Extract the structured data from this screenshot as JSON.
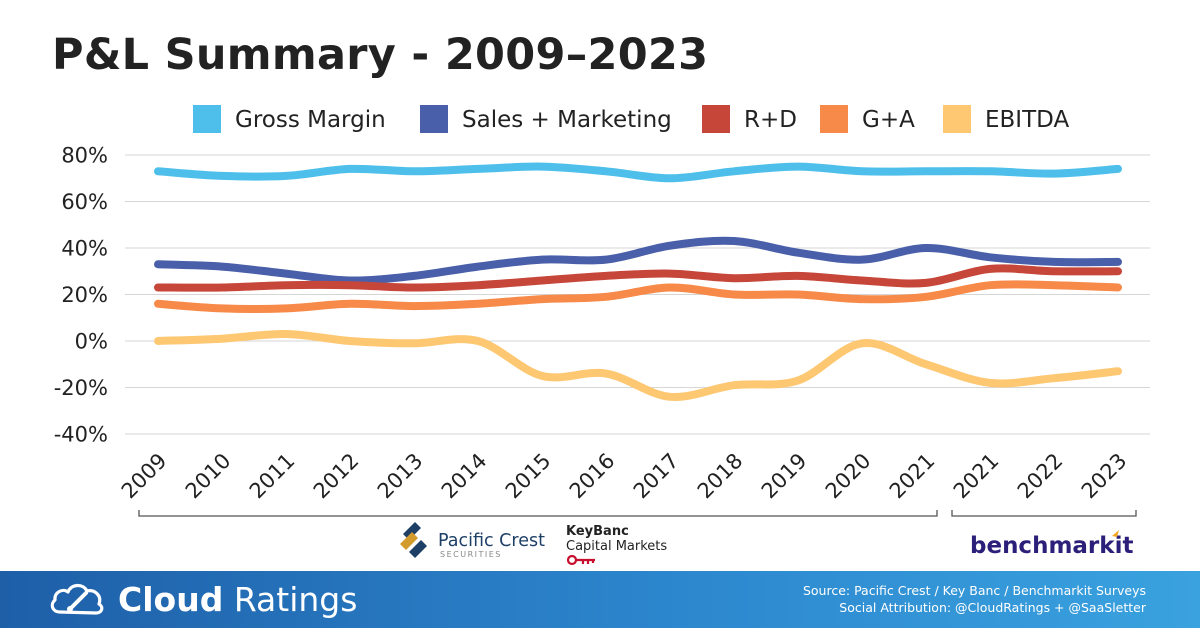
{
  "title": "P&L Summary - 2009–2023",
  "chart_data": {
    "type": "line",
    "title": "P&L Summary - 2009–2023",
    "categories": [
      "2009",
      "2010",
      "2011",
      "2012",
      "2013",
      "2014",
      "2015",
      "2016",
      "2017",
      "2018",
      "2019",
      "2020",
      "2021",
      "2021",
      "2022",
      "2023"
    ],
    "ylim": [
      -40,
      80
    ],
    "yticks": [
      80,
      60,
      40,
      20,
      0,
      -20,
      -40
    ],
    "ytick_labels": [
      "80%",
      "60%",
      "40%",
      "20%",
      "0%",
      "-20%",
      "-40%"
    ],
    "grid": true,
    "legend_position": "top",
    "series": [
      {
        "name": "Gross Margin",
        "color": "#4dbfea",
        "values": [
          73,
          71,
          71,
          74,
          73,
          74,
          75,
          73,
          70,
          73,
          75,
          73,
          73,
          73,
          72,
          74
        ]
      },
      {
        "name": "Sales + Marketing",
        "color": "#4a5fa9",
        "values": [
          33,
          32,
          29,
          26,
          28,
          32,
          35,
          35,
          41,
          43,
          38,
          35,
          40,
          36,
          34,
          34
        ]
      },
      {
        "name": "R+D",
        "color": "#c7463a",
        "values": [
          23,
          23,
          24,
          24,
          23,
          24,
          26,
          28,
          29,
          27,
          28,
          26,
          25,
          31,
          30,
          30
        ]
      },
      {
        "name": "G+A",
        "color": "#f78a48",
        "values": [
          16,
          14,
          14,
          16,
          15,
          16,
          18,
          19,
          23,
          20,
          20,
          18,
          19,
          24,
          24,
          23
        ]
      },
      {
        "name": "EBITDA",
        "color": "#fec772",
        "values": [
          0,
          1,
          3,
          0,
          -1,
          0,
          -15,
          -14,
          -24,
          -19,
          -17,
          -1,
          -10,
          -18,
          -16,
          -13
        ]
      }
    ]
  },
  "logos": {
    "pacific_crest": {
      "name": "Pacific Crest",
      "sub": "SECURITIES"
    },
    "keybanc": {
      "line1": "KeyBanc",
      "line2": "Capital Markets"
    },
    "benchmarkit": {
      "name": "benchmarkit"
    }
  },
  "footer": {
    "brand_bold": "Cloud",
    "brand_light": "Ratings",
    "source": "Source: Pacific Crest / Key Banc / Benchmarkit Surveys",
    "attribution": "Social Attribution: @CloudRatings + @SaaSletter"
  }
}
